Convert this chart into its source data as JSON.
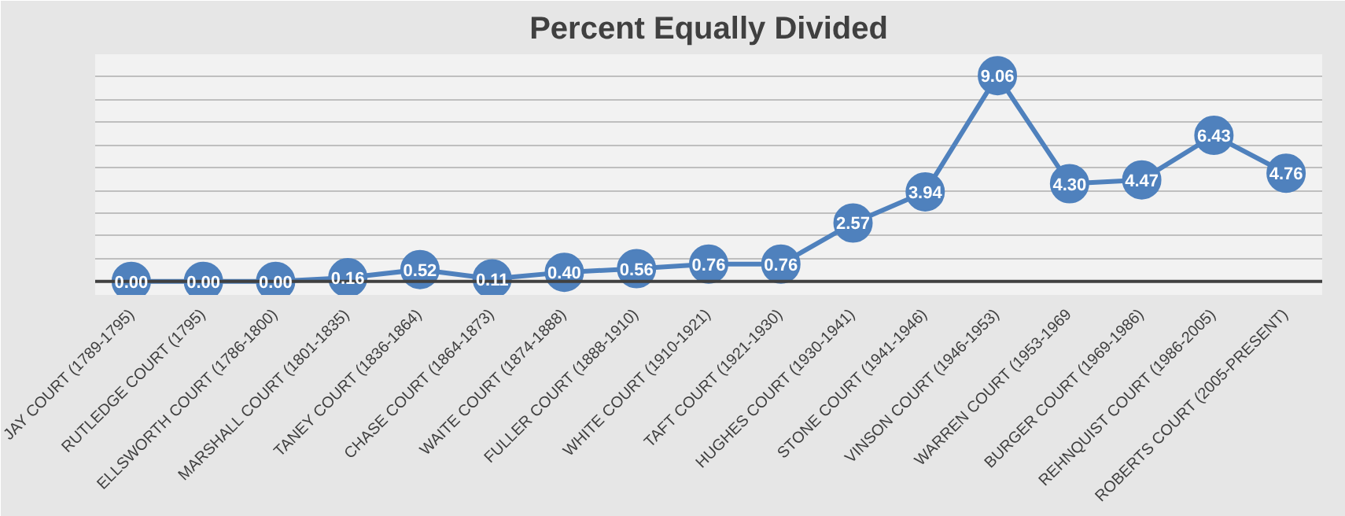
{
  "chart_data": {
    "type": "line",
    "title": "Percent Equally Divided",
    "categories": [
      "JAY COURT (1789-1795)",
      "RUTLEDGE COURT (1795)",
      "ELLSWORTH COURT (1786-1800)",
      "MARSHALL COURT (1801-1835)",
      "TANEY COURT (1836-1864)",
      "CHASE COURT (1864-1873)",
      "WAITE COURT (1874-1888)",
      "FULLER COURT (1888-1910)",
      "WHITE COURT (1910-1921)",
      "TAFT COURT (1921-1930)",
      "HUGHES COURT (1930-1941)",
      "STONE COURT (1941-1946)",
      "VINSON COURT (1946-1953)",
      "WARREN COURT (1953-1969",
      "BURGER COURT (1969-1986)",
      "REHNQUIST COURT (1986-2005)",
      "ROBERTS COURT (2005-PRESENT)"
    ],
    "series": [
      {
        "color": "#4f81bd",
        "values": [
          0.0,
          0.0,
          0.0,
          0.16,
          0.52,
          0.11,
          0.4,
          0.56,
          0.76,
          0.76,
          2.57,
          3.94,
          9.06,
          4.3,
          4.47,
          6.43,
          4.76
        ],
        "value_labels": [
          "0.00",
          "0.00",
          "0.00",
          "0.16",
          "0.52",
          "0.11",
          "0.40",
          "0.56",
          "0.76",
          "0.76",
          "2.57",
          "3.94",
          "9.06",
          "4.30",
          "4.47",
          "6.43",
          "4.76"
        ]
      }
    ],
    "ylim": [
      -0.6,
      10
    ],
    "yticks": [
      {
        "value": 0,
        "label": null
      },
      {
        "value": 1,
        "label": null
      },
      {
        "value": 2,
        "label": null
      },
      {
        "value": 3,
        "label": null
      },
      {
        "value": 4,
        "label": null
      },
      {
        "value": 5,
        "label": null
      },
      {
        "value": 6,
        "label": null
      },
      {
        "value": 7,
        "label": null
      },
      {
        "value": 8,
        "label": null
      },
      {
        "value": 9,
        "label": null
      },
      {
        "value": 10,
        "label": null
      }
    ],
    "tick_labels": "x",
    "grid": "y",
    "marker": "circle",
    "line_style": "solid"
  }
}
